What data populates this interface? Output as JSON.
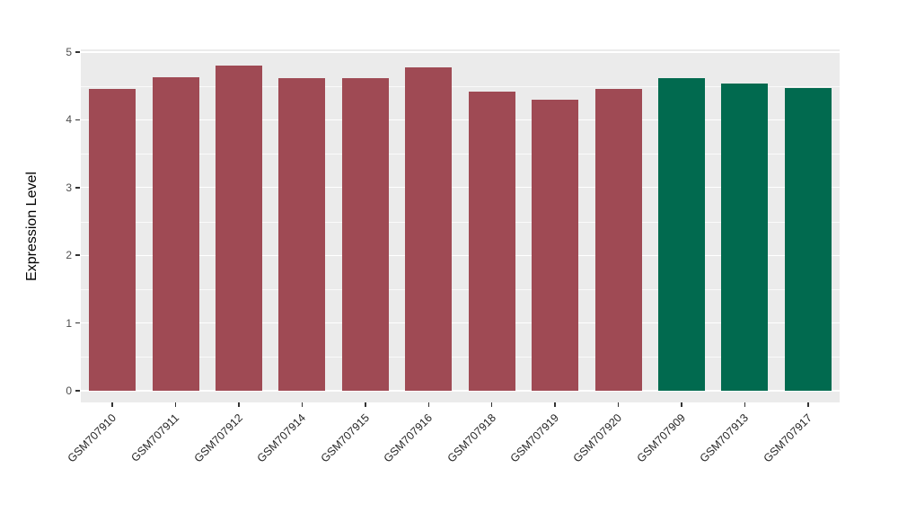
{
  "chart_data": {
    "type": "bar",
    "title": "",
    "xlabel": "",
    "ylabel": "Expression Level",
    "ylim": [
      0,
      5
    ],
    "yticks": [
      "0",
      "1",
      "2",
      "3",
      "4",
      "5"
    ],
    "grid": "on",
    "legend_position": "none",
    "categories": [
      "GSM707910",
      "GSM707911",
      "GSM707912",
      "GSM707914",
      "GSM707915",
      "GSM707916",
      "GSM707918",
      "GSM707919",
      "GSM707920",
      "GSM707909",
      "GSM707913",
      "GSM707917"
    ],
    "values": [
      4.46,
      4.63,
      4.8,
      4.61,
      4.62,
      4.78,
      4.41,
      4.3,
      4.46,
      4.62,
      4.53,
      4.47
    ],
    "groups": [
      "red",
      "red",
      "red",
      "red",
      "red",
      "red",
      "red",
      "red",
      "red",
      "green",
      "green",
      "green"
    ],
    "colors": {
      "red": "#9F4A54",
      "green": "#016A4F"
    },
    "panel_bg": "#EBEBEB",
    "grid_color": "#FFFFFF",
    "axis_text_color": "#4D4D4D"
  }
}
